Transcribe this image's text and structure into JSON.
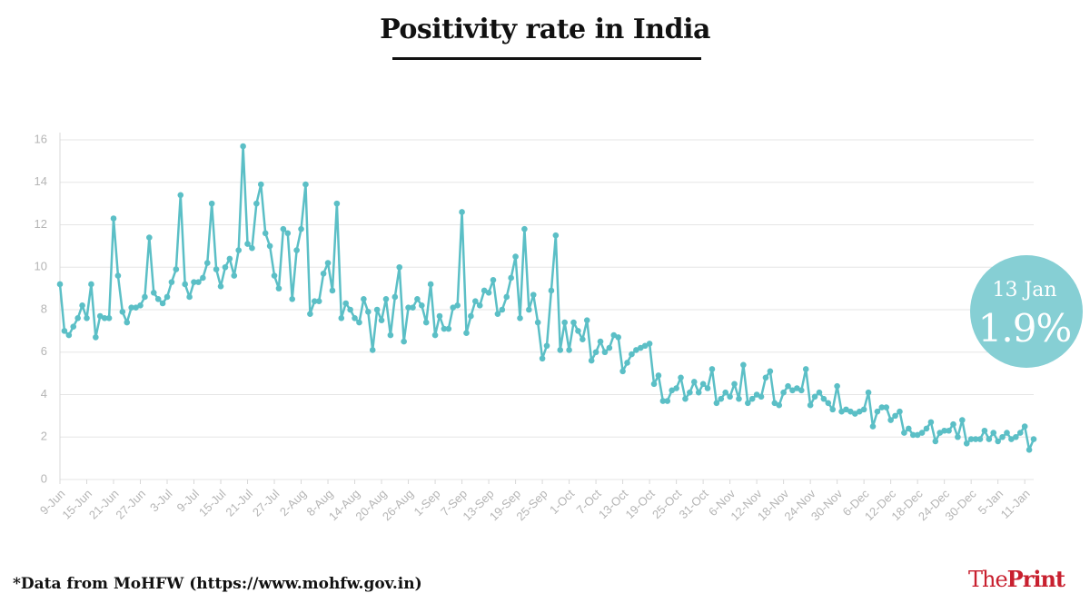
{
  "chart_data": {
    "type": "line",
    "title": "Positivity rate in India",
    "categories": [
      "9-Jun",
      null,
      null,
      null,
      null,
      null,
      "15-Jun",
      null,
      null,
      null,
      null,
      null,
      "21-Jun",
      null,
      null,
      null,
      null,
      null,
      "27-Jun",
      null,
      null,
      null,
      null,
      null,
      "3-Jul",
      null,
      null,
      null,
      null,
      null,
      "9-Jul",
      null,
      null,
      null,
      null,
      null,
      "15-Jul",
      null,
      null,
      null,
      null,
      null,
      "21-Jul",
      null,
      null,
      null,
      null,
      null,
      "27-Jul",
      null,
      null,
      null,
      null,
      null,
      "2-Aug",
      null,
      null,
      null,
      null,
      null,
      "8-Aug",
      null,
      null,
      null,
      null,
      null,
      "14-Aug",
      null,
      null,
      null,
      null,
      null,
      "20-Aug",
      null,
      null,
      null,
      null,
      null,
      "26-Aug",
      null,
      null,
      null,
      null,
      null,
      "1-Sep",
      null,
      null,
      null,
      null,
      null,
      "7-Sep",
      null,
      null,
      null,
      null,
      null,
      "13-Sep",
      null,
      null,
      null,
      null,
      null,
      "19-Sep",
      null,
      null,
      null,
      null,
      null,
      "25-Sep",
      null,
      null,
      null,
      null,
      null,
      "1-Oct",
      null,
      null,
      null,
      null,
      null,
      "7-Oct",
      null,
      null,
      null,
      null,
      null,
      "13-Oct",
      null,
      null,
      null,
      null,
      null,
      "19-Oct",
      null,
      null,
      null,
      null,
      null,
      "25-Oct",
      null,
      null,
      null,
      null,
      null,
      "31-Oct",
      null,
      null,
      null,
      null,
      null,
      "6-Nov",
      null,
      null,
      null,
      null,
      null,
      "12-Nov",
      null,
      null,
      null,
      null,
      null,
      "18-Nov",
      null,
      null,
      null,
      null,
      null,
      "24-Nov",
      null,
      null,
      null,
      null,
      null,
      "30-Nov",
      null,
      null,
      null,
      null,
      null,
      "6-Dec",
      null,
      null,
      null,
      null,
      null,
      "12-Dec",
      null,
      null,
      null,
      null,
      null,
      "18-Dec",
      null,
      null,
      null,
      null,
      null,
      "24-Dec",
      null,
      null,
      null,
      null,
      null,
      "30-Dec",
      null,
      null,
      null,
      null,
      null,
      "5-Jan",
      null,
      null,
      null,
      null,
      null,
      "11-Jan",
      null,
      null
    ],
    "values": [
      9.2,
      7.0,
      6.8,
      7.2,
      7.6,
      8.2,
      7.6,
      9.2,
      6.7,
      7.7,
      7.6,
      7.6,
      12.3,
      9.6,
      7.9,
      7.4,
      8.1,
      8.1,
      8.2,
      8.6,
      11.4,
      8.8,
      8.5,
      8.3,
      8.6,
      9.3,
      9.9,
      13.4,
      9.2,
      8.6,
      9.3,
      9.3,
      9.5,
      10.2,
      13.0,
      9.9,
      9.1,
      10.0,
      10.4,
      9.6,
      10.8,
      15.7,
      11.1,
      10.9,
      13.0,
      13.9,
      11.6,
      11.0,
      9.6,
      9.0,
      11.8,
      11.6,
      8.5,
      10.8,
      11.8,
      13.9,
      7.8,
      8.4,
      8.4,
      9.7,
      10.2,
      8.9,
      13.0,
      7.6,
      8.3,
      8.0,
      7.6,
      7.4,
      8.5,
      7.9,
      6.1,
      8.0,
      7.5,
      8.5,
      6.8,
      8.6,
      10.0,
      6.5,
      8.1,
      8.1,
      8.5,
      8.2,
      7.4,
      9.2,
      6.8,
      7.7,
      7.1,
      7.1,
      8.1,
      8.2,
      12.6,
      6.9,
      7.7,
      8.4,
      8.2,
      8.9,
      8.8,
      9.4,
      7.8,
      8.0,
      8.6,
      9.5,
      10.5,
      7.6,
      11.8,
      8.0,
      8.7,
      7.4,
      5.7,
      6.3,
      8.9,
      11.5,
      6.1,
      7.4,
      6.1,
      7.4,
      7.0,
      6.6,
      7.5,
      5.6,
      6.0,
      6.5,
      6.0,
      6.2,
      6.8,
      6.7,
      5.1,
      5.5,
      5.9,
      6.1,
      6.2,
      6.3,
      6.4,
      4.5,
      4.9,
      3.7,
      3.7,
      4.2,
      4.3,
      4.8,
      3.8,
      4.1,
      4.6,
      4.1,
      4.5,
      4.3,
      5.2,
      3.6,
      3.8,
      4.1,
      3.9,
      4.5,
      3.8,
      5.4,
      3.6,
      3.8,
      4.0,
      3.9,
      4.8,
      5.1,
      3.6,
      3.5,
      4.1,
      4.4,
      4.2,
      4.3,
      4.2,
      5.2,
      3.5,
      3.9,
      4.1,
      3.8,
      3.6,
      3.3,
      4.4,
      3.2,
      3.3,
      3.2,
      3.1,
      3.2,
      3.3,
      4.1,
      2.5,
      3.2,
      3.4,
      3.4,
      2.8,
      3.0,
      3.2,
      2.2,
      2.4,
      2.1,
      2.1,
      2.2,
      2.4,
      2.7,
      1.8,
      2.2,
      2.3,
      2.3,
      2.6,
      2.0,
      2.8,
      1.7,
      1.9,
      1.9,
      1.9,
      2.3,
      1.9,
      2.2,
      1.8,
      2.0,
      2.2,
      1.9,
      2.0,
      2.2,
      2.5,
      1.4,
      1.9
    ],
    "color": "#5bbfc6",
    "ylim": [
      0,
      16
    ],
    "yticks": [
      0,
      2,
      4,
      6,
      8,
      10,
      12,
      14,
      16
    ],
    "grid": true,
    "annotation": {
      "date": "13 Jan",
      "value_label": "1.9%",
      "color": "#86cfd4"
    },
    "source": "*Data from MoHFW (https://www.mohfw.gov.in)",
    "brand": {
      "first": "The",
      "second": "Print"
    }
  }
}
